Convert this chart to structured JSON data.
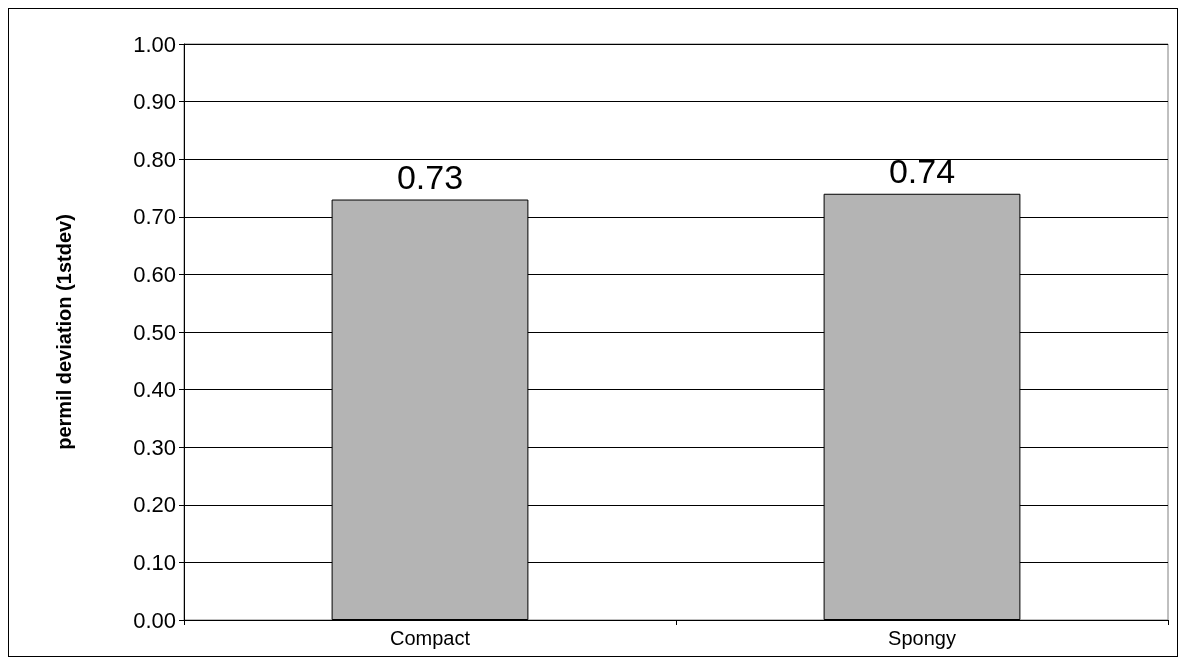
{
  "chart_data": {
    "type": "bar",
    "ylabel": "permil deviation (1stdev)",
    "categories": [
      "Compact",
      "Spongy"
    ],
    "values": [
      0.73,
      0.74
    ],
    "color": "#b4b4b4",
    "ylim": [
      0,
      1
    ],
    "yticks": [
      {
        "value": 0,
        "label": "0.00"
      },
      {
        "value": 0.1,
        "label": "0.10"
      },
      {
        "value": 0.2,
        "label": "0.20"
      },
      {
        "value": 0.3,
        "label": "0.30"
      },
      {
        "value": 0.4,
        "label": "0.40"
      },
      {
        "value": 0.5,
        "label": "0.50"
      },
      {
        "value": 0.6,
        "label": "0.60"
      },
      {
        "value": 0.7,
        "label": "0.70"
      },
      {
        "value": 0.8,
        "label": "0.80"
      },
      {
        "value": 0.9,
        "label": "0.90"
      },
      {
        "value": 1,
        "label": "1.00"
      }
    ],
    "grid": "y",
    "data_labels": true
  }
}
